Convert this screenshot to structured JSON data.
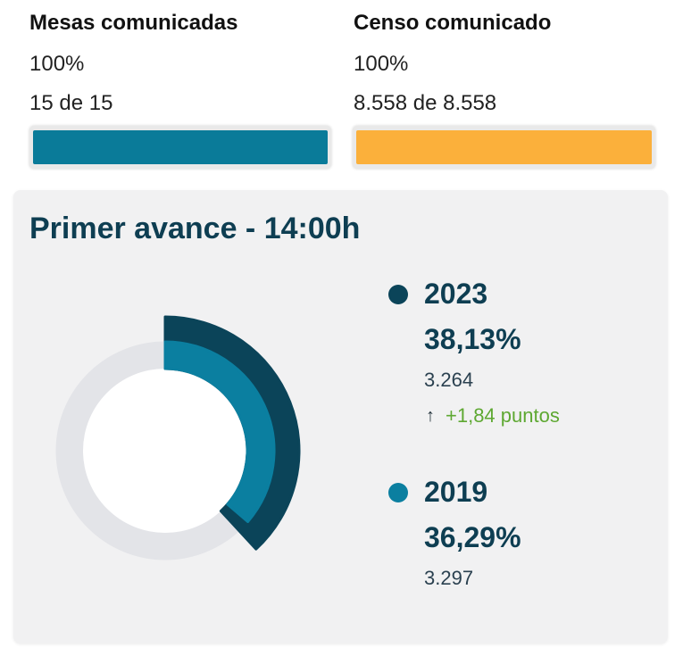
{
  "mesas": {
    "title": "Mesas comunicadas",
    "percent": "100%",
    "count": "15 de 15",
    "progress": 100,
    "color": "#0a7b99"
  },
  "censo": {
    "title": "Censo comunicado",
    "percent": "100%",
    "count": "8.558 de 8.558",
    "progress": 100,
    "color": "#fbb03b"
  },
  "avance": {
    "title": "Primer avance - 14:00h",
    "current": {
      "year": "2023",
      "percent": "38,13%",
      "votes": "3.264",
      "delta_icon": "arrow-up-icon",
      "delta_arrow": "↑",
      "delta": "+1,84 puntos",
      "color": "#0b4459"
    },
    "previous": {
      "year": "2019",
      "percent": "36,29%",
      "votes": "3.297",
      "color": "#0b7fa0"
    }
  },
  "chart_data": {
    "type": "pie",
    "title": "Primer avance - 14:00h",
    "categories": [
      "2023",
      "2019"
    ],
    "values": [
      38.13,
      36.29
    ],
    "series": [
      {
        "name": "2023",
        "values": [
          38.13
        ],
        "color": "#0b4459"
      },
      {
        "name": "2019",
        "values": [
          36.29
        ],
        "color": "#0b7fa0"
      }
    ],
    "track_color": "#e3e4e8",
    "ylim": [
      0,
      100
    ]
  }
}
